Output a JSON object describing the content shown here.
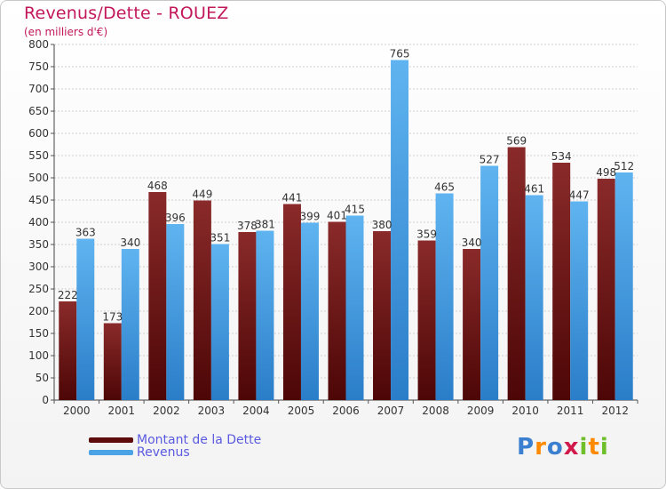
{
  "chart_data": {
    "type": "bar",
    "title": "Revenus/Dette - ROUEZ",
    "subtitle": "(en milliers d'€)",
    "categories": [
      "2000",
      "2001",
      "2002",
      "2003",
      "2004",
      "2005",
      "2006",
      "2007",
      "2008",
      "2009",
      "2010",
      "2011",
      "2012"
    ],
    "series": [
      {
        "name": "Montant de la Dette",
        "color": "#7a1a1a",
        "values": [
          222,
          173,
          468,
          449,
          378,
          441,
          401,
          380,
          359,
          340,
          569,
          534,
          498
        ]
      },
      {
        "name": "Revenus",
        "color": "#4aa3e4",
        "values": [
          363,
          340,
          396,
          351,
          381,
          399,
          415,
          765,
          465,
          527,
          461,
          447,
          512
        ]
      }
    ],
    "ylim": [
      0,
      800
    ],
    "yticks": [
      0,
      50,
      100,
      150,
      200,
      250,
      300,
      350,
      400,
      450,
      500,
      550,
      600,
      650,
      700,
      750,
      800
    ],
    "grid": true,
    "legend": "bottom-left"
  },
  "legend": {
    "debt_label": "Montant de la Dette",
    "revenue_label": "Revenus"
  },
  "logo": {
    "letters": [
      "P",
      "r",
      "o",
      "x",
      "i",
      "t",
      "i"
    ],
    "colors": [
      "#3b7fd0",
      "#ff8a00",
      "#3b7fd0",
      "#d11a4a",
      "#6fbf2a",
      "#ff8a00",
      "#6fbf2a"
    ]
  }
}
